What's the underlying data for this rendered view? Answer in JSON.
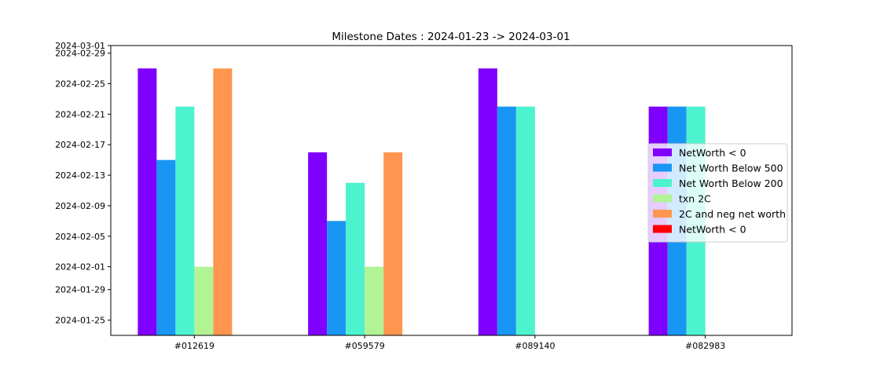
{
  "chart_data": {
    "type": "bar",
    "title": "Milestone Dates : 2024-01-23 -> 2024-03-01",
    "xlabel": "",
    "ylabel": "",
    "categories": [
      "#012619",
      "#059579",
      "#089140",
      "#082983"
    ],
    "ylim": [
      "2024-01-23",
      "2024-03-01"
    ],
    "yticks": [
      "2024-01-25",
      "2024-01-29",
      "2024-02-01",
      "2024-02-05",
      "2024-02-09",
      "2024-02-13",
      "2024-02-17",
      "2024-02-21",
      "2024-02-25",
      "2024-02-29",
      "2024-03-01"
    ],
    "legend_position": "center-right",
    "grid": false,
    "series": [
      {
        "name": "NetWorth < 0",
        "color": "#8000ff",
        "values": [
          "2024-02-27",
          "2024-02-16",
          "2024-02-27",
          "2024-02-22"
        ]
      },
      {
        "name": "Net Worth Below 500",
        "color": "#1996f3",
        "values": [
          "2024-02-15",
          "2024-02-07",
          "2024-02-22",
          "2024-02-22"
        ]
      },
      {
        "name": "Net Worth Below 200",
        "color": "#4df3ce",
        "values": [
          "2024-02-22",
          "2024-02-12",
          "2024-02-22",
          "2024-02-22"
        ]
      },
      {
        "name": "txn 2C",
        "color": "#b2f396",
        "values": [
          "2024-02-01",
          "2024-02-01",
          null,
          null
        ]
      },
      {
        "name": "2C and neg net worth",
        "color": "#ff964f",
        "values": [
          "2024-02-27",
          "2024-02-16",
          null,
          null
        ]
      },
      {
        "name": "NetWorth < 0",
        "color": "#ff0000",
        "values": [
          null,
          null,
          null,
          null
        ]
      }
    ]
  }
}
